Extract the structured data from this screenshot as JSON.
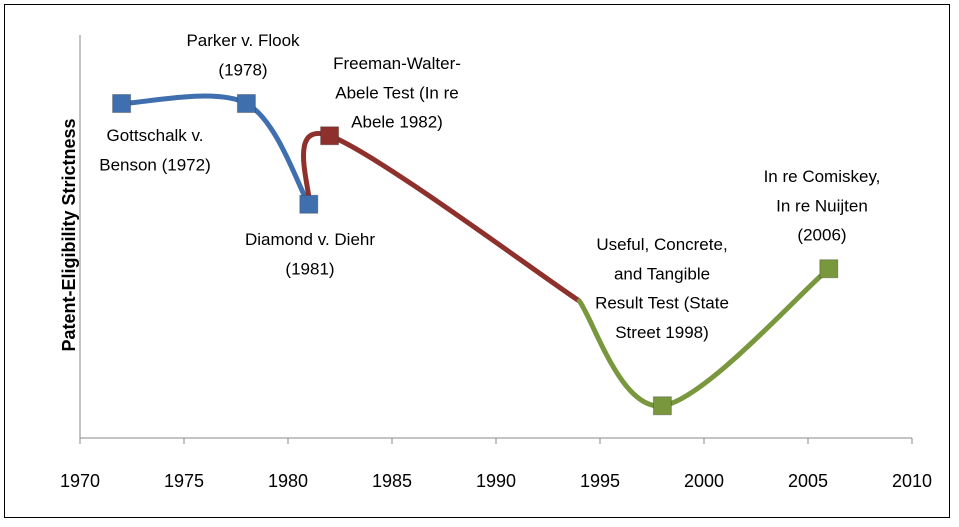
{
  "chart_data": {
    "type": "line",
    "y_label": "Patent-Eligibility Strictness",
    "xlim": [
      1970,
      2010
    ],
    "xticks": [
      1970,
      1975,
      1980,
      1985,
      1990,
      1995,
      2000,
      2005,
      2010
    ],
    "ylim": [
      0,
      10
    ],
    "series": [
      {
        "color": "#3f6fae",
        "x": [
          1972,
          1978,
          1981
        ],
        "values": [
          8.3,
          8.3,
          5.8
        ],
        "markers": [
          true,
          true,
          true
        ]
      },
      {
        "color": "#8e302c",
        "x": [
          1981,
          1982,
          1994
        ],
        "values": [
          5.8,
          7.5,
          3.4
        ],
        "markers": [
          false,
          true,
          false
        ]
      },
      {
        "color": "#79973d",
        "x": [
          1994,
          1998,
          2006
        ],
        "values": [
          3.4,
          0.8,
          4.2
        ],
        "markers": [
          false,
          true,
          true
        ]
      }
    ],
    "annotations": [
      {
        "lines": [
          "Parker v. Flook",
          "(1978)"
        ]
      },
      {
        "lines": [
          "Gottschalk v.",
          "Benson (1972)"
        ]
      },
      {
        "lines": [
          "Freeman-Walter-",
          "Abele Test (In re",
          "Abele 1982)"
        ]
      },
      {
        "lines": [
          "Diamond v. Diehr",
          "(1981)"
        ]
      },
      {
        "lines": [
          "Useful, Concrete,",
          "and Tangible",
          "Result Test (State",
          "Street 1998)"
        ]
      },
      {
        "lines": [
          "In re Comiskey,",
          "In re Nuijten",
          "(2006)"
        ]
      }
    ]
  }
}
